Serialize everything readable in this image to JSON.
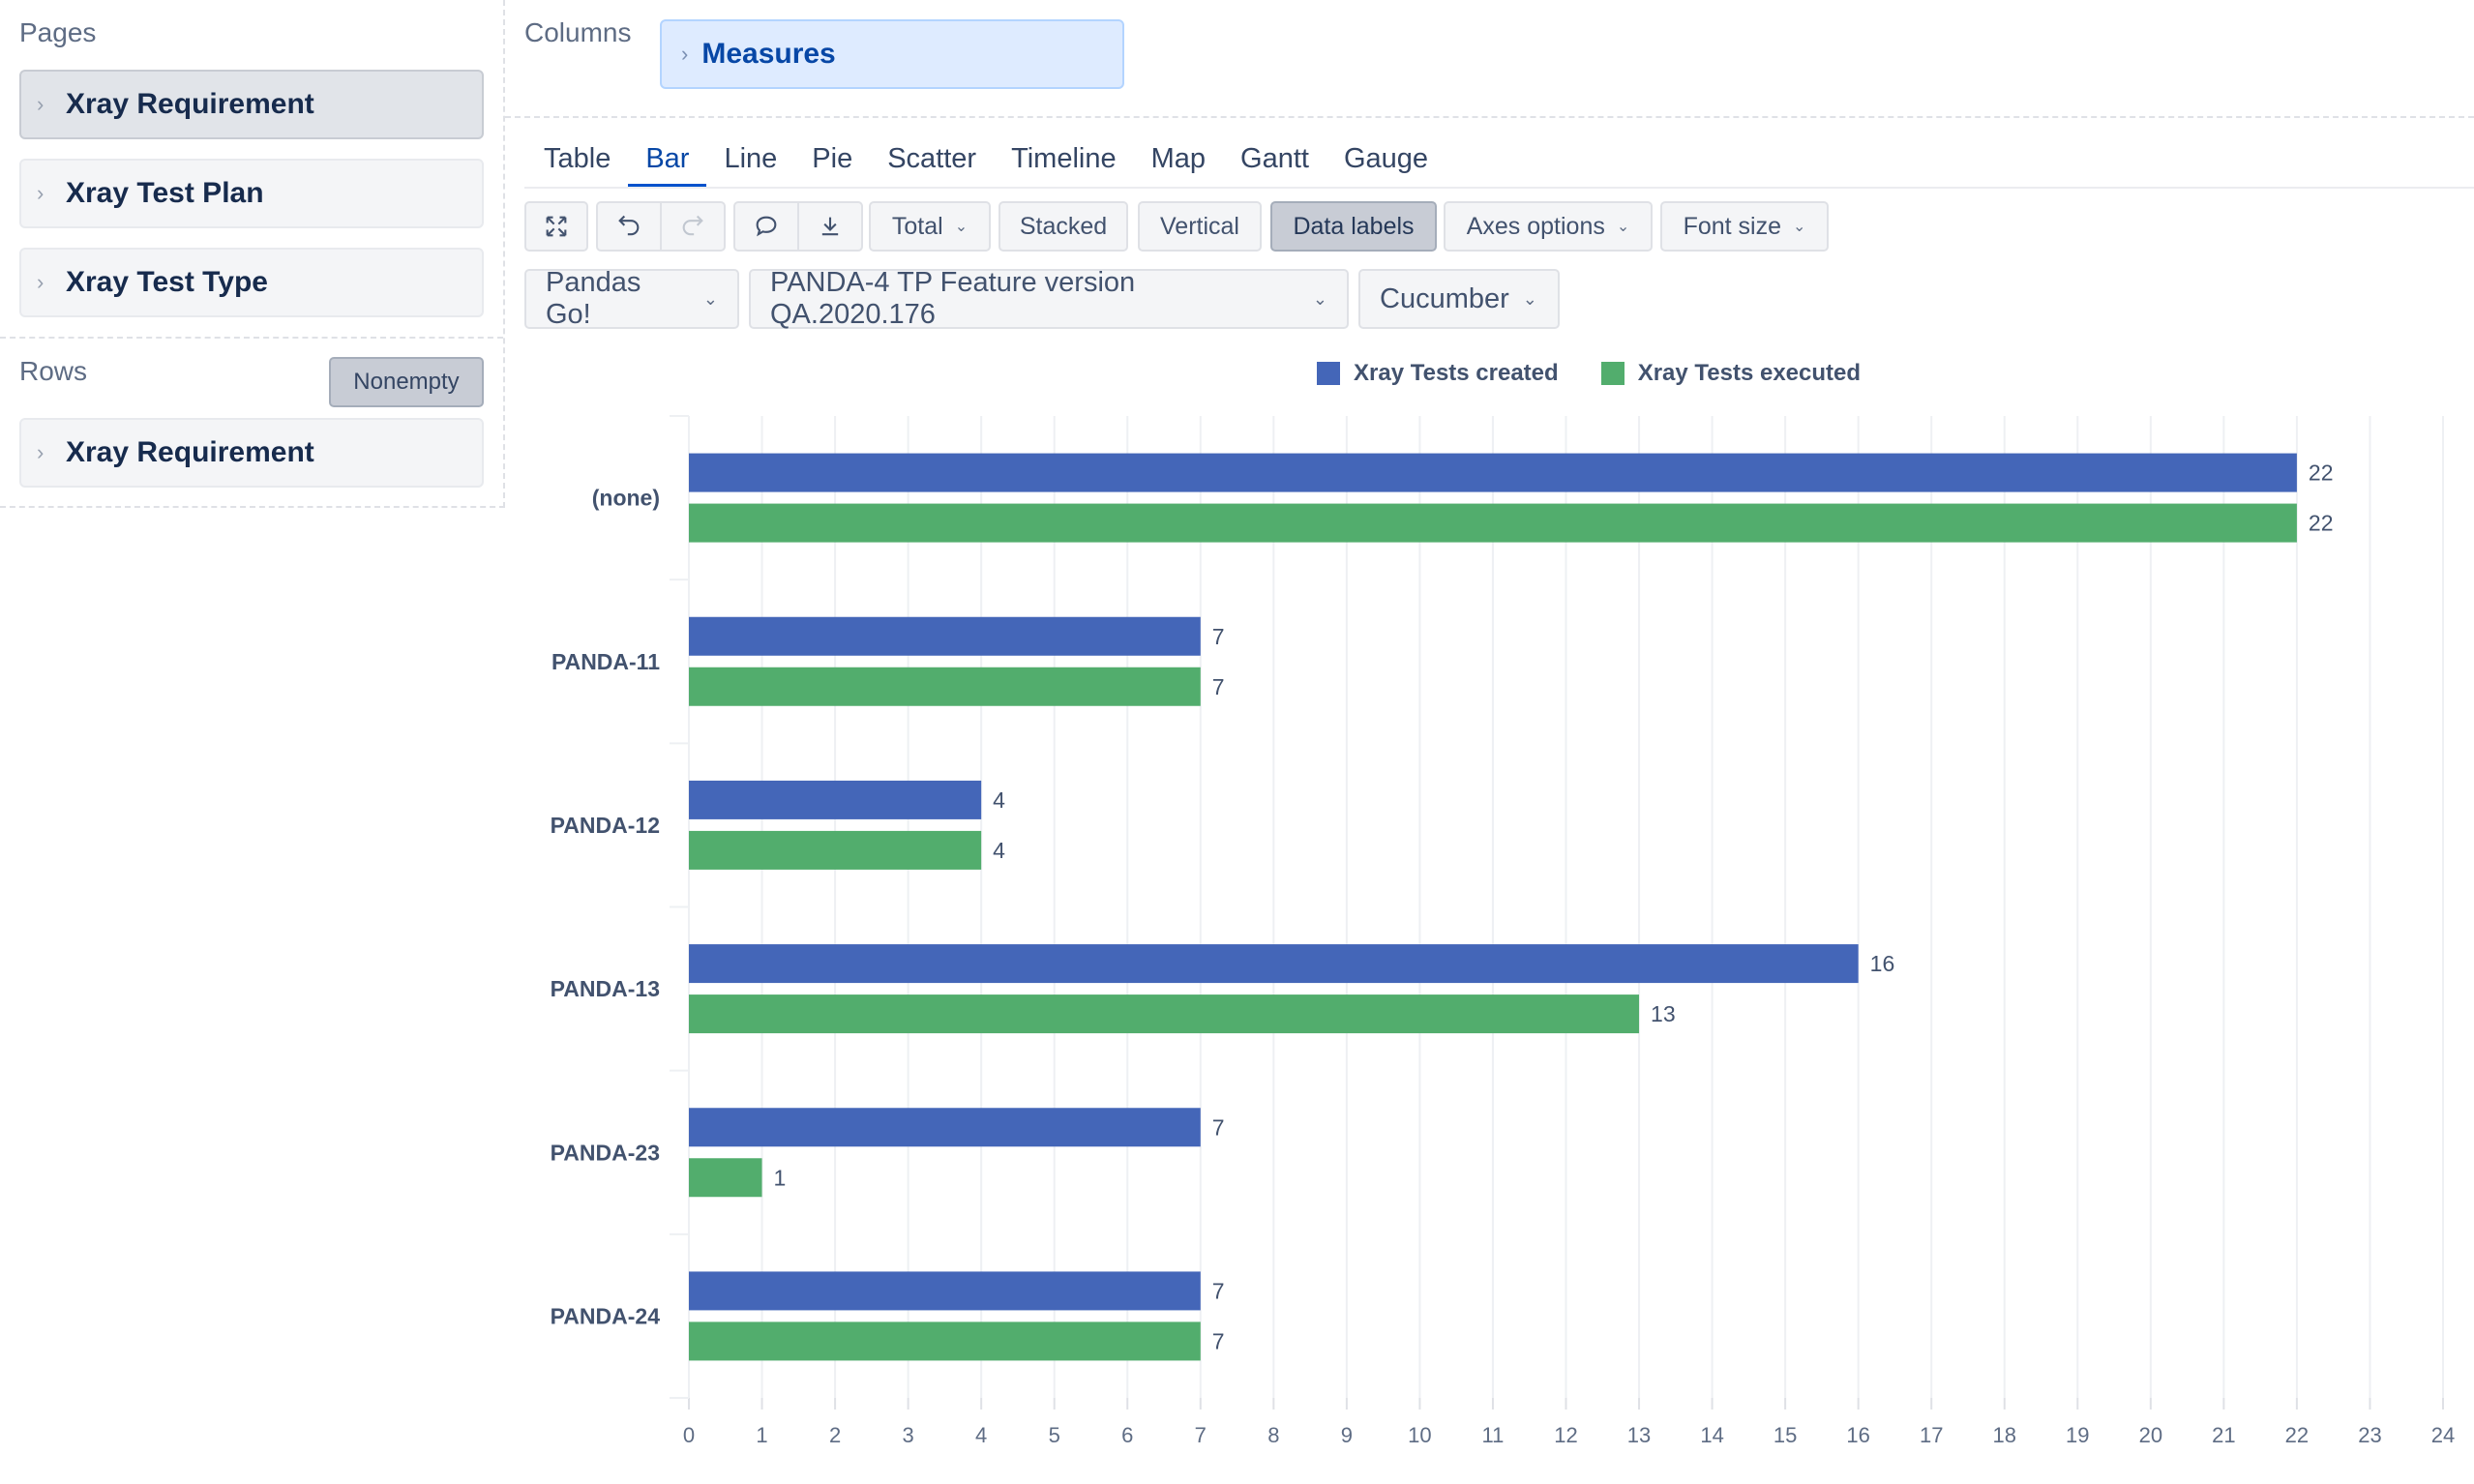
{
  "pages": {
    "title": "Pages",
    "items": [
      "Xray Requirement",
      "Xray Test Plan",
      "Xray Test Type"
    ]
  },
  "rows": {
    "title": "Rows",
    "nonempty_label": "Nonempty",
    "items": [
      "Xray Requirement"
    ]
  },
  "columns": {
    "title": "Columns",
    "items": [
      "Measures"
    ]
  },
  "tabs": [
    "Table",
    "Bar",
    "Line",
    "Pie",
    "Scatter",
    "Timeline",
    "Map",
    "Gantt",
    "Gauge"
  ],
  "active_tab": "Bar",
  "toolbar": {
    "total_label": "Total",
    "stacked_label": "Stacked",
    "vertical_label": "Vertical",
    "data_labels_label": "Data labels",
    "axes_options_label": "Axes options",
    "font_size_label": "Font size",
    "icons": [
      "expand-icon",
      "undo-icon",
      "redo-icon",
      "comment-icon",
      "download-icon"
    ]
  },
  "filters": {
    "project": "Pandas Go!",
    "test_plan": "PANDA-4 TP Feature version QA.2020.176",
    "test_type": "Cucumber"
  },
  "colors": {
    "created": "#4466b8",
    "executed": "#52ad6d",
    "active_tab": "#0052cc"
  },
  "chart_data": {
    "type": "bar",
    "orientation": "horizontal",
    "categories": [
      "(none)",
      "PANDA-11",
      "PANDA-12",
      "PANDA-13",
      "PANDA-23",
      "PANDA-24"
    ],
    "series": [
      {
        "name": "Xray Tests created",
        "values": [
          22,
          7,
          4,
          16,
          7,
          7
        ]
      },
      {
        "name": "Xray Tests executed",
        "values": [
          22,
          7,
          4,
          13,
          1,
          7
        ]
      }
    ],
    "xlim": [
      0,
      24
    ],
    "xticks": [
      0,
      1,
      2,
      3,
      4,
      5,
      6,
      7,
      8,
      9,
      10,
      11,
      12,
      13,
      14,
      15,
      16,
      17,
      18,
      19,
      20,
      21,
      22,
      23,
      24
    ],
    "data_labels": true,
    "grid": true,
    "legend_position": "top"
  }
}
